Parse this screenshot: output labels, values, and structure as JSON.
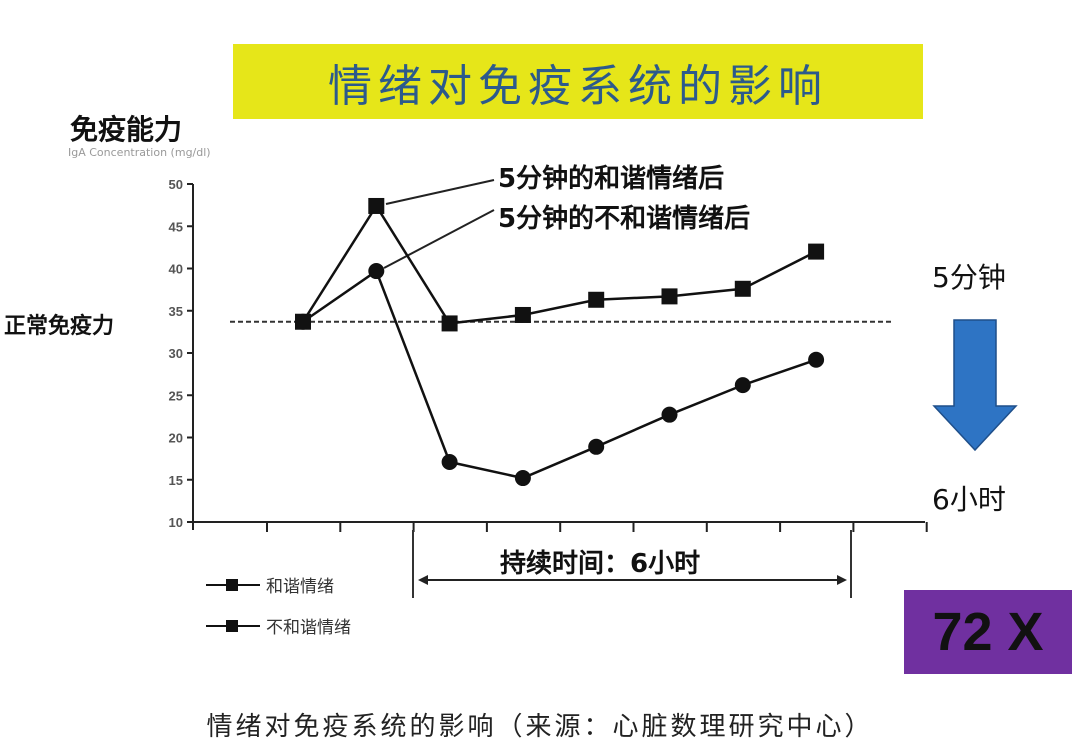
{
  "title": "情绪对免疫系统的影响",
  "axis": {
    "ylabel_cn": "免疫能力",
    "ylabel_en": "IgA Concentration (mg/dl)",
    "yticks": [
      "50",
      "45",
      "40",
      "35",
      "30",
      "25",
      "20",
      "15",
      "10"
    ],
    "normal_label": "正常免疫力"
  },
  "annotations": {
    "harmonious_after": "5分钟的和谐情绪后",
    "disharmonious_after": "5分钟的不和谐情绪后",
    "duration": "持续时间：6小时"
  },
  "legend": [
    {
      "label": "和谐情绪",
      "marker": "square"
    },
    {
      "label": "不和谐情绪",
      "marker": "square"
    }
  ],
  "side": {
    "top_label": "5分钟",
    "bottom_label": "6小时",
    "arrow_color": "#2e74c4",
    "multiplier": "72 X",
    "multiplier_bg": "#7030a0"
  },
  "caption": "情绪对免疫系统的影响（来源：心脏数理研究中心）",
  "chart_data": {
    "type": "line",
    "title": "情绪对免疫系统的影响",
    "xlabel": "",
    "ylabel": "免疫能力 IgA Concentration (mg/dl)",
    "ylim": [
      10,
      50
    ],
    "yticks": [
      10,
      15,
      20,
      25,
      30,
      35,
      40,
      45,
      50
    ],
    "x": [
      1,
      2,
      3,
      4,
      5,
      6,
      7,
      8
    ],
    "series": [
      {
        "name": "和谐情绪",
        "marker": "square",
        "values": [
          33.7,
          47.4,
          33.5,
          34.5,
          36.3,
          36.7,
          37.6,
          42.0
        ]
      },
      {
        "name": "不和谐情绪",
        "marker": "circle",
        "values": [
          33.7,
          39.7,
          17.1,
          15.2,
          18.9,
          22.7,
          26.2,
          29.2
        ]
      }
    ],
    "reference_line": {
      "label": "正常免疫力",
      "value": 33.7,
      "style": "dashed"
    },
    "span_annotation": {
      "label": "持续时间：6小时",
      "from_x": 2.5,
      "to_x": 8.5
    },
    "grid": false,
    "legend_position": "bottom-left"
  }
}
